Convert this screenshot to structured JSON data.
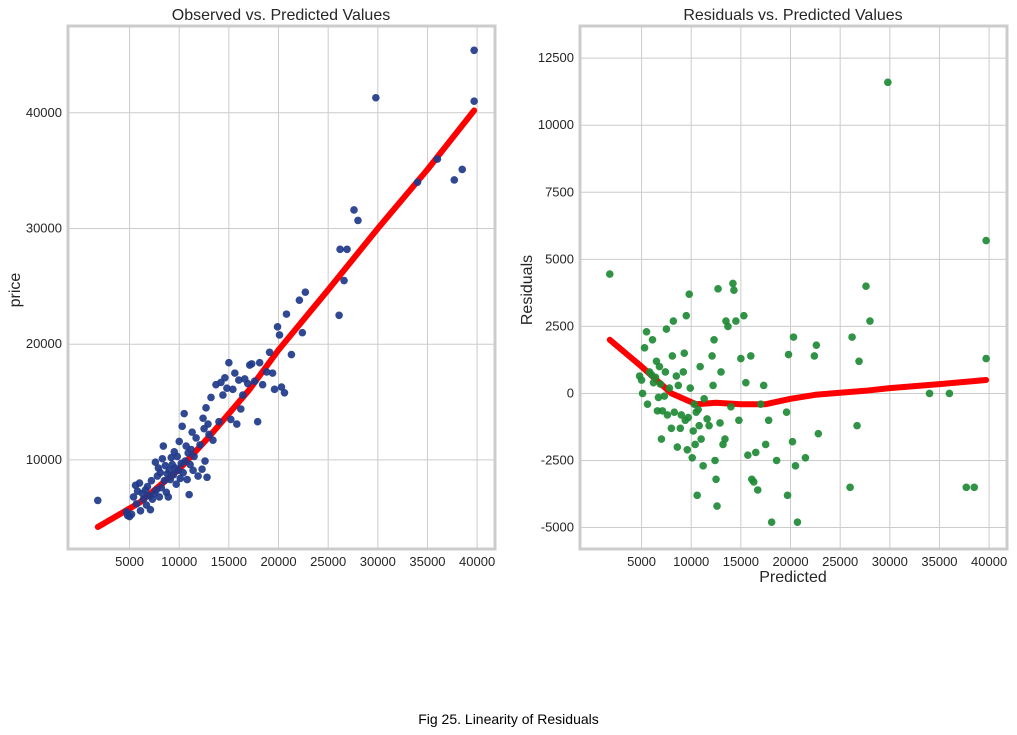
{
  "caption": "Fig 25. Linearity of Residuals",
  "chart_data": [
    {
      "type": "scatter",
      "title": "Observed vs. Predicted Values",
      "xlabel": "",
      "ylabel": "price",
      "xlim": [
        -1200,
        41800
      ],
      "ylim": [
        2300,
        47500
      ],
      "xticks": [
        5000,
        10000,
        15000,
        20000,
        25000,
        30000,
        35000,
        40000
      ],
      "yticks": [
        10000,
        20000,
        30000,
        40000
      ],
      "grid": true,
      "point_color": "#1f3a8a",
      "line_color": "#ff0000",
      "points": [
        [
          1800,
          6500
        ],
        [
          4700,
          5500
        ],
        [
          4800,
          5200
        ],
        [
          5000,
          5100
        ],
        [
          5200,
          5300
        ],
        [
          5400,
          6800
        ],
        [
          5600,
          7800
        ],
        [
          5700,
          6200
        ],
        [
          5800,
          7300
        ],
        [
          6000,
          8000
        ],
        [
          6100,
          5600
        ],
        [
          6300,
          7100
        ],
        [
          6400,
          6600
        ],
        [
          6600,
          7400
        ],
        [
          6700,
          6100
        ],
        [
          6800,
          7700
        ],
        [
          7000,
          6900
        ],
        [
          7100,
          5700
        ],
        [
          7200,
          8200
        ],
        [
          7300,
          6600
        ],
        [
          7500,
          7100
        ],
        [
          7600,
          9800
        ],
        [
          7700,
          7400
        ],
        [
          7800,
          8600
        ],
        [
          7900,
          9300
        ],
        [
          8000,
          6800
        ],
        [
          8100,
          8900
        ],
        [
          8200,
          7600
        ],
        [
          8300,
          10100
        ],
        [
          8400,
          11200
        ],
        [
          8500,
          8200
        ],
        [
          8600,
          9500
        ],
        [
          8700,
          7200
        ],
        [
          8800,
          8800
        ],
        [
          8900,
          6800
        ],
        [
          9000,
          9100
        ],
        [
          9100,
          8300
        ],
        [
          9200,
          10200
        ],
        [
          9300,
          9600
        ],
        [
          9400,
          8700
        ],
        [
          9500,
          10700
        ],
        [
          9600,
          9300
        ],
        [
          9700,
          7900
        ],
        [
          9800,
          10300
        ],
        [
          9900,
          9100
        ],
        [
          10000,
          11600
        ],
        [
          10100,
          8400
        ],
        [
          10200,
          9700
        ],
        [
          10300,
          12900
        ],
        [
          10400,
          8900
        ],
        [
          10500,
          14000
        ],
        [
          10600,
          9900
        ],
        [
          10700,
          11200
        ],
        [
          10800,
          8300
        ],
        [
          10900,
          10600
        ],
        [
          11000,
          7000
        ],
        [
          11100,
          9600
        ],
        [
          11200,
          10900
        ],
        [
          11300,
          12400
        ],
        [
          11400,
          9100
        ],
        [
          11500,
          10300
        ],
        [
          11700,
          11900
        ],
        [
          11900,
          8600
        ],
        [
          12100,
          11300
        ],
        [
          12300,
          9200
        ],
        [
          12400,
          13600
        ],
        [
          12500,
          12700
        ],
        [
          12600,
          9900
        ],
        [
          12700,
          14500
        ],
        [
          12800,
          8500
        ],
        [
          12900,
          13100
        ],
        [
          13000,
          12200
        ],
        [
          13200,
          15400
        ],
        [
          13400,
          11700
        ],
        [
          13700,
          16500
        ],
        [
          14000,
          13300
        ],
        [
          14200,
          16700
        ],
        [
          14400,
          15600
        ],
        [
          14600,
          17100
        ],
        [
          14800,
          16200
        ],
        [
          15000,
          18400
        ],
        [
          15200,
          13500
        ],
        [
          15400,
          16100
        ],
        [
          15600,
          17500
        ],
        [
          15800,
          13100
        ],
        [
          16000,
          16900
        ],
        [
          16200,
          14400
        ],
        [
          16400,
          15600
        ],
        [
          16600,
          17000
        ],
        [
          16900,
          16600
        ],
        [
          17100,
          18200
        ],
        [
          17300,
          18300
        ],
        [
          17600,
          16800
        ],
        [
          17900,
          13300
        ],
        [
          18100,
          18400
        ],
        [
          18400,
          16500
        ],
        [
          18800,
          17600
        ],
        [
          19100,
          19300
        ],
        [
          19400,
          17500
        ],
        [
          19600,
          16100
        ],
        [
          19900,
          21500
        ],
        [
          20100,
          20800
        ],
        [
          20300,
          16300
        ],
        [
          20600,
          15800
        ],
        [
          20800,
          22600
        ],
        [
          21300,
          19100
        ],
        [
          22100,
          23800
        ],
        [
          22400,
          21000
        ],
        [
          22700,
          24500
        ],
        [
          26100,
          22500
        ],
        [
          26200,
          28200
        ],
        [
          26600,
          25500
        ],
        [
          26900,
          28200
        ],
        [
          27600,
          31600
        ],
        [
          28000,
          30700
        ],
        [
          29800,
          41300
        ],
        [
          34000,
          34000
        ],
        [
          36000,
          36000
        ],
        [
          37700,
          34200
        ],
        [
          38500,
          35100
        ],
        [
          39700,
          45400
        ],
        [
          39700,
          41000
        ]
      ],
      "fit": [
        [
          1800,
          4200
        ],
        [
          6000,
          6300
        ],
        [
          10000,
          9200
        ],
        [
          13000,
          12000
        ],
        [
          17000,
          16000
        ],
        [
          20000,
          19500
        ],
        [
          25000,
          24700
        ],
        [
          30000,
          30000
        ],
        [
          35000,
          35100
        ],
        [
          39700,
          40200
        ]
      ]
    },
    {
      "type": "scatter",
      "title": "Residuals vs. Predicted Values",
      "xlabel": "Predicted",
      "ylabel": "Residuals",
      "xlim": [
        -1200,
        41800
      ],
      "ylim": [
        -5800,
        13700
      ],
      "xticks": [
        5000,
        10000,
        15000,
        20000,
        25000,
        30000,
        35000,
        40000
      ],
      "yticks": [
        -5000,
        -2500,
        0,
        2500,
        5000,
        7500,
        10000,
        12500
      ],
      "grid": true,
      "point_color": "#1e8a35",
      "line_color": "#ff0000",
      "points": [
        [
          1800,
          4450
        ],
        [
          4800,
          650
        ],
        [
          5000,
          500
        ],
        [
          5100,
          0
        ],
        [
          5300,
          1700
        ],
        [
          5500,
          2300
        ],
        [
          5600,
          -400
        ],
        [
          5800,
          800
        ],
        [
          6000,
          700
        ],
        [
          6100,
          2000
        ],
        [
          6200,
          400
        ],
        [
          6400,
          600
        ],
        [
          6500,
          1200
        ],
        [
          6600,
          -650
        ],
        [
          6700,
          -150
        ],
        [
          6800,
          1000
        ],
        [
          6900,
          350
        ],
        [
          7000,
          -1700
        ],
        [
          7100,
          -650
        ],
        [
          7300,
          -100
        ],
        [
          7400,
          800
        ],
        [
          7500,
          2400
        ],
        [
          7600,
          -800
        ],
        [
          7800,
          200
        ],
        [
          8000,
          -1300
        ],
        [
          8100,
          1400
        ],
        [
          8200,
          2700
        ],
        [
          8300,
          -700
        ],
        [
          8500,
          650
        ],
        [
          8600,
          -2000
        ],
        [
          8700,
          300
        ],
        [
          8900,
          -1300
        ],
        [
          9000,
          -800
        ],
        [
          9200,
          800
        ],
        [
          9300,
          1500
        ],
        [
          9400,
          -1000
        ],
        [
          9500,
          2900
        ],
        [
          9600,
          -2100
        ],
        [
          9700,
          -900
        ],
        [
          9800,
          3700
        ],
        [
          9900,
          200
        ],
        [
          10100,
          -2400
        ],
        [
          10200,
          -1400
        ],
        [
          10300,
          -400
        ],
        [
          10400,
          -1900
        ],
        [
          10500,
          -700
        ],
        [
          10600,
          -3800
        ],
        [
          10700,
          -600
        ],
        [
          10800,
          -1200
        ],
        [
          10900,
          1000
        ],
        [
          11000,
          -1700
        ],
        [
          11200,
          -2700
        ],
        [
          11300,
          -200
        ],
        [
          11600,
          -950
        ],
        [
          11800,
          -1200
        ],
        [
          12100,
          1400
        ],
        [
          12200,
          300
        ],
        [
          12300,
          2000
        ],
        [
          12400,
          -2500
        ],
        [
          12500,
          -3200
        ],
        [
          12600,
          -4200
        ],
        [
          12700,
          3900
        ],
        [
          12900,
          -1100
        ],
        [
          13000,
          800
        ],
        [
          13200,
          -1900
        ],
        [
          13400,
          -1700
        ],
        [
          13500,
          2700
        ],
        [
          13700,
          2500
        ],
        [
          14000,
          -500
        ],
        [
          14200,
          4100
        ],
        [
          14300,
          3850
        ],
        [
          14500,
          2700
        ],
        [
          14800,
          -1000
        ],
        [
          15000,
          1300
        ],
        [
          15300,
          2900
        ],
        [
          15500,
          400
        ],
        [
          15700,
          -2300
        ],
        [
          16000,
          1400
        ],
        [
          16100,
          -3200
        ],
        [
          16300,
          -3300
        ],
        [
          16500,
          -2200
        ],
        [
          16700,
          -3600
        ],
        [
          17000,
          -400
        ],
        [
          17300,
          300
        ],
        [
          17500,
          -1900
        ],
        [
          17800,
          -1000
        ],
        [
          18100,
          -4800
        ],
        [
          18600,
          -2500
        ],
        [
          19600,
          -700
        ],
        [
          19700,
          -3800
        ],
        [
          19800,
          1450
        ],
        [
          20200,
          -1800
        ],
        [
          20300,
          2100
        ],
        [
          20500,
          -2700
        ],
        [
          20700,
          -4800
        ],
        [
          21500,
          -2400
        ],
        [
          22400,
          1400
        ],
        [
          22600,
          1800
        ],
        [
          22800,
          -1500
        ],
        [
          26000,
          -3500
        ],
        [
          26200,
          2100
        ],
        [
          26700,
          -1200
        ],
        [
          26900,
          1200
        ],
        [
          27600,
          4000
        ],
        [
          28000,
          2700
        ],
        [
          29800,
          11600
        ],
        [
          34000,
          0
        ],
        [
          36000,
          0
        ],
        [
          37700,
          -3500
        ],
        [
          38500,
          -3500
        ],
        [
          39700,
          5700
        ],
        [
          39700,
          1300
        ]
      ],
      "fit": [
        [
          1800,
          2000
        ],
        [
          5000,
          1000
        ],
        [
          8000,
          0
        ],
        [
          10500,
          -400
        ],
        [
          12500,
          -350
        ],
        [
          15000,
          -400
        ],
        [
          17500,
          -400
        ],
        [
          20000,
          -200
        ],
        [
          22500,
          -50
        ],
        [
          27500,
          100
        ],
        [
          30000,
          200
        ],
        [
          35000,
          350
        ],
        [
          39700,
          500
        ]
      ]
    }
  ]
}
